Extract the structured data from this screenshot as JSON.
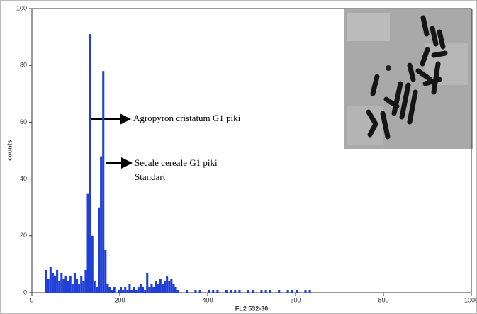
{
  "chart_data": {
    "type": "histogram",
    "xlabel": "FL2  532-30",
    "ylabel": "counts",
    "bins": [
      30,
      35,
      40,
      45,
      50,
      55,
      60,
      65,
      70,
      75,
      80,
      85,
      90,
      95,
      100,
      105,
      110,
      115,
      120,
      125,
      130,
      135,
      140,
      145,
      150,
      155,
      160,
      165,
      170,
      175,
      180,
      185,
      190,
      195,
      200,
      205,
      210,
      215,
      220,
      225,
      230,
      235,
      240,
      245,
      250,
      255,
      260,
      265,
      270,
      275,
      280,
      285,
      290,
      295,
      300,
      305,
      310,
      315,
      320,
      325,
      330,
      335,
      340,
      345,
      350,
      360,
      370,
      380,
      390,
      400,
      410,
      420,
      430,
      440,
      450,
      460,
      470,
      480,
      490,
      500,
      510,
      520,
      530,
      540,
      550,
      560,
      570,
      580,
      590,
      600,
      610,
      620,
      630,
      640
    ],
    "values": [
      8,
      5,
      9,
      7,
      6,
      8,
      4,
      7,
      5,
      6,
      4,
      6,
      3,
      7,
      5,
      3,
      6,
      4,
      8,
      35,
      91,
      20,
      4,
      2,
      30,
      48,
      78,
      15,
      3,
      2,
      1,
      2,
      0,
      1,
      2,
      1,
      2,
      1,
      3,
      1,
      2,
      1,
      2,
      3,
      2,
      1,
      7,
      2,
      3,
      2,
      4,
      3,
      5,
      3,
      4,
      6,
      4,
      5,
      3,
      2,
      1,
      0,
      0,
      0,
      1,
      0,
      1,
      1,
      0,
      1,
      1,
      1,
      0,
      1,
      1,
      1,
      1,
      0,
      1,
      1,
      0,
      1,
      1,
      1,
      0,
      1,
      0,
      1,
      1,
      1,
      0,
      1,
      1
    ],
    "color": "#1f3fd6",
    "xlim": [
      0,
      1000
    ],
    "ylim": [
      0,
      100
    ],
    "xticks": [
      0,
      200,
      400,
      600,
      800,
      1000
    ],
    "yticks": [
      0,
      20,
      40,
      60,
      80,
      100
    ],
    "annotations": [
      "Agropyron cristatum G1 piki",
      "Secale cereale G1 piki",
      "Standart"
    ]
  }
}
